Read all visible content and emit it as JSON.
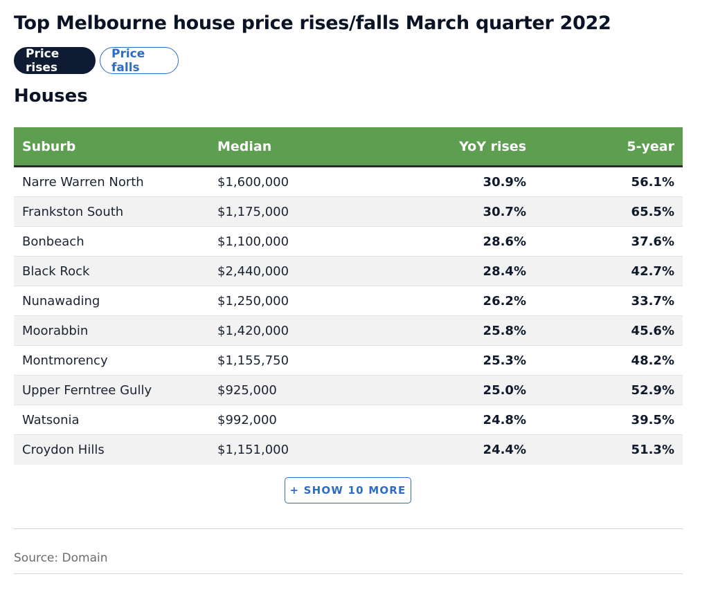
{
  "title": "Top Melbourne house price rises/falls March quarter 2022",
  "toggles": {
    "rises_label": "Price rises",
    "falls_label": "Price falls",
    "active": "Price rises"
  },
  "section_title": "Houses",
  "table": {
    "headers": [
      "Suburb",
      "Median",
      "YoY rises",
      "5-year"
    ],
    "rows": [
      [
        "Narre Warren North",
        "$1,600,000",
        "30.9%",
        "56.1%"
      ],
      [
        "Frankston South",
        "$1,175,000",
        "30.7%",
        "65.5%"
      ],
      [
        "Bonbeach",
        "$1,100,000",
        "28.6%",
        "37.6%"
      ],
      [
        "Black Rock",
        "$2,440,000",
        "28.4%",
        "42.7%"
      ],
      [
        "Nunawading",
        "$1,250,000",
        "26.2%",
        "33.7%"
      ],
      [
        "Moorabbin",
        "$1,420,000",
        "25.8%",
        "45.6%"
      ],
      [
        "Montmorency",
        "$1,155,750",
        "25.3%",
        "48.2%"
      ],
      [
        "Upper Ferntree Gully",
        "$925,000",
        "25.0%",
        "52.9%"
      ],
      [
        "Watsonia",
        "$992,000",
        "24.8%",
        "39.5%"
      ],
      [
        "Croydon Hills",
        "$1,151,000",
        "24.4%",
        "51.3%"
      ]
    ]
  },
  "show_more_label": "+ SHOW 10 MORE",
  "source": "Source: Domain",
  "colors": {
    "header_green": "#5e9e50",
    "active_pill": "#0f1a33",
    "link_blue": "#2f6bc4"
  }
}
